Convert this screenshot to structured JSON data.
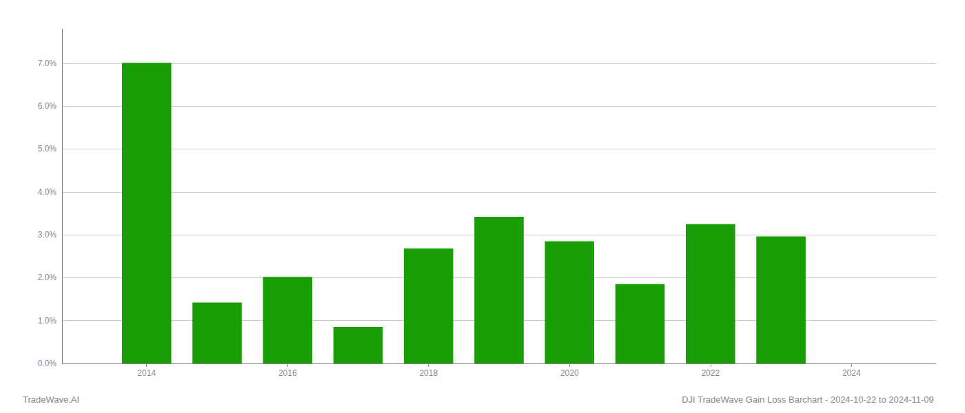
{
  "chart_data": {
    "type": "bar",
    "title": "DJI TradeWave Gain Loss Barchart - 2024-10-22 to 2024-11-09",
    "annotations": [
      "TradeWave.AI"
    ],
    "x": [
      2014,
      2015,
      2016,
      2017,
      2018,
      2019,
      2020,
      2021,
      2022,
      2023
    ],
    "values": [
      0.0701,
      0.0142,
      0.0202,
      0.0085,
      0.0268,
      0.0342,
      0.0285,
      0.0185,
      0.0325,
      0.0296
    ],
    "color": "#1a9e06",
    "xlim": [
      2012.8,
      2025.2
    ],
    "xticks": [
      2014,
      2016,
      2018,
      2020,
      2022,
      2024
    ],
    "ylim": [
      0,
      0.078
    ],
    "yticks": [
      {
        "value": 0,
        "label": "0.0%"
      },
      {
        "value": 0.01,
        "label": "1.0%"
      },
      {
        "value": 0.02,
        "label": "2.0%"
      },
      {
        "value": 0.03,
        "label": "3.0%"
      },
      {
        "value": 0.04,
        "label": "4.0%"
      },
      {
        "value": 0.05,
        "label": "5.0%"
      },
      {
        "value": 0.06,
        "label": "6.0%"
      },
      {
        "value": 0.07,
        "label": "7.0%"
      }
    ],
    "grid": true
  }
}
